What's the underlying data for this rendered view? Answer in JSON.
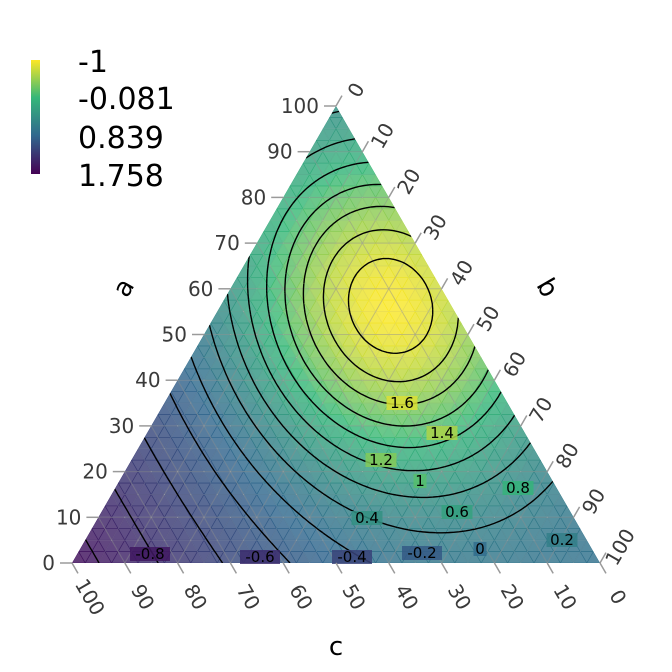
{
  "chart_data": {
    "type": "ternary-heatmap",
    "title": "",
    "axes": {
      "a": {
        "label": "a",
        "ticks": [
          "0",
          "10",
          "20",
          "30",
          "40",
          "50",
          "60",
          "70",
          "80",
          "90",
          "100"
        ]
      },
      "b": {
        "label": "b",
        "ticks": [
          "0",
          "10",
          "20",
          "30",
          "40",
          "50",
          "60",
          "70",
          "80",
          "90",
          "100"
        ]
      },
      "c": {
        "label": "c",
        "ticks": [
          "100",
          "90",
          "80",
          "70",
          "60",
          "50",
          "40",
          "30",
          "20",
          "10",
          "0"
        ]
      }
    },
    "legend": {
      "position": "top-left",
      "labels": [
        "-1",
        "-0.081",
        "0.839",
        "1.758"
      ],
      "colors": [
        "#fde725",
        "#35b779",
        "#31688e",
        "#440154"
      ]
    },
    "contours": [
      {
        "label": "-0.8",
        "level": -0.8
      },
      {
        "label": "-0.6",
        "level": -0.6
      },
      {
        "label": "-0.4",
        "level": -0.4
      },
      {
        "label": "-0.2",
        "level": -0.2
      },
      {
        "label": "0",
        "level": 0
      },
      {
        "label": "0.2",
        "level": 0.2
      },
      {
        "label": "0.4",
        "level": 0.4
      },
      {
        "label": "0.6",
        "level": 0.6
      },
      {
        "label": "0.8",
        "level": 0.8
      },
      {
        "label": "1",
        "level": 1.0
      },
      {
        "label": "1.2",
        "level": 1.2
      },
      {
        "label": "1.4",
        "level": 1.4
      },
      {
        "label": "1.6",
        "level": 1.6
      }
    ],
    "grid": true
  }
}
